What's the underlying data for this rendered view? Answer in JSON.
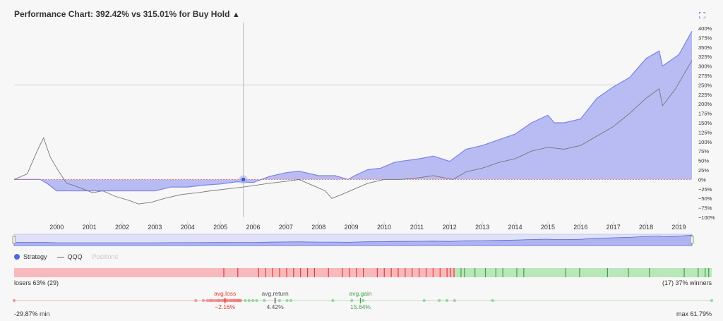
{
  "header": {
    "title": "Performance Chart: 392.42% vs 315.01% for Buy Hold",
    "warning_icon": "warning-triangle-icon",
    "expand_icon": "expand-icon"
  },
  "colors": {
    "strategy": "#7b83ea",
    "strategy_fill": "#b8bcf3",
    "benchmark": "#777777",
    "losers": "#f8b9bd",
    "winners": "#b9e7bb",
    "loss_tick": "#e53935",
    "win_tick": "#43a047"
  },
  "chart_data": {
    "type": "area",
    "x_tick_labels": [
      "2000",
      "2001",
      "2002",
      "2003",
      "2004",
      "2005",
      "2006",
      "2007",
      "2008",
      "2009",
      "2010",
      "2011",
      "2012",
      "2013",
      "2014",
      "2015",
      "2016",
      "2017",
      "2018",
      "2019"
    ],
    "y_tick_labels": [
      "400%",
      "375%",
      "350%",
      "325%",
      "300%",
      "275%",
      "250%",
      "225%",
      "200%",
      "175%",
      "150%",
      "125%",
      "100%",
      "75%",
      "50%",
      "25%",
      "0%",
      "−25%",
      "−50%",
      "−75%",
      "−100%"
    ],
    "ylim": [
      -100,
      400
    ],
    "xlim": [
      1999.2,
      2019.9
    ],
    "series": [
      {
        "name": "Strategy",
        "x": [
          1999.2,
          2000.0,
          2000.2,
          2000.5,
          2001.0,
          2001.5,
          2002.0,
          2002.5,
          2003.0,
          2003.5,
          2004.0,
          2004.5,
          2005.0,
          2005.5,
          2006.0,
          2006.5,
          2007.0,
          2007.5,
          2007.9,
          2008.5,
          2009.0,
          2009.4,
          2009.6,
          2010.0,
          2010.4,
          2010.8,
          2011.0,
          2011.6,
          2012.0,
          2012.5,
          2013.0,
          2013.5,
          2014.0,
          2014.5,
          2015.0,
          2015.5,
          2015.7,
          2016.0,
          2016.5,
          2017.0,
          2017.5,
          2018.0,
          2018.5,
          2018.9,
          2019.0,
          2019.5,
          2019.9
        ],
        "values": [
          0,
          0,
          -10,
          -30,
          -30,
          -30,
          -30,
          -30,
          -30,
          -30,
          -20,
          -20,
          -15,
          -12,
          -6,
          -8,
          8,
          18,
          22,
          10,
          10,
          0,
          10,
          26,
          30,
          45,
          48,
          55,
          62,
          48,
          80,
          90,
          105,
          120,
          150,
          170,
          150,
          150,
          160,
          215,
          245,
          270,
          320,
          340,
          300,
          330,
          392
        ]
      },
      {
        "name": "QQQ",
        "x": [
          1999.2,
          1999.6,
          1999.9,
          2000.1,
          2000.3,
          2000.5,
          2000.8,
          2001.0,
          2001.3,
          2001.6,
          2001.9,
          2002.3,
          2002.7,
          2003.0,
          2003.4,
          2003.8,
          2004.3,
          2004.8,
          2005.2,
          2005.7,
          2006.2,
          2006.6,
          2007.0,
          2007.5,
          2007.9,
          2008.3,
          2008.7,
          2008.9,
          2009.2,
          2009.6,
          2010.0,
          2010.5,
          2011.0,
          2011.6,
          2012.0,
          2012.6,
          2013.0,
          2013.5,
          2014.0,
          2014.5,
          2015.0,
          2015.5,
          2016.0,
          2016.5,
          2017.0,
          2017.5,
          2018.0,
          2018.5,
          2018.9,
          2019.0,
          2019.4,
          2019.9
        ],
        "values": [
          0,
          15,
          75,
          110,
          60,
          30,
          -10,
          -15,
          -25,
          -35,
          -30,
          -45,
          -55,
          -65,
          -60,
          -50,
          -40,
          -35,
          -30,
          -25,
          -20,
          -15,
          -10,
          -5,
          0,
          -15,
          -30,
          -50,
          -40,
          -25,
          -10,
          0,
          0,
          5,
          10,
          0,
          20,
          30,
          45,
          55,
          75,
          85,
          80,
          90,
          115,
          140,
          175,
          215,
          240,
          195,
          240,
          315
        ]
      }
    ],
    "hover_point": {
      "year": 2006.2,
      "value": 0
    },
    "grid": true
  },
  "navigator": {},
  "legend": [
    {
      "label": "Strategy",
      "icon": "strategy-dot-icon",
      "enabled": true
    },
    {
      "label": "QQQ",
      "icon": "qqq-line-icon",
      "enabled": true
    },
    {
      "label": "Positions",
      "icon": "",
      "enabled": false
    }
  ],
  "trades": {
    "losers_label": "losers 63% (29)",
    "winners_label": "(17) 37% winners",
    "loser_fraction": 0.63,
    "loss_ticks": [
      0.3,
      0.32,
      0.35,
      0.36,
      0.37,
      0.38,
      0.39,
      0.4,
      0.41,
      0.42,
      0.43,
      0.45,
      0.47,
      0.48,
      0.49,
      0.5,
      0.52,
      0.53,
      0.54,
      0.55,
      0.56,
      0.57,
      0.58,
      0.59,
      0.6,
      0.61,
      0.62,
      0.625,
      0.63
    ],
    "win_ticks": [
      0.64,
      0.645,
      0.66,
      0.69,
      0.72,
      0.73,
      0.79,
      0.81,
      0.88,
      0.96,
      0.98,
      0.99,
      0.995,
      0.7,
      0.675,
      0.85,
      0.91
    ]
  },
  "distribution": {
    "min_label": "-29.87% min",
    "max_label": "max 61.79%",
    "min": -29.87,
    "max": 61.79,
    "avg_loss": {
      "label": "avg.loss",
      "value": -2.16,
      "value_label": "−2.16%"
    },
    "avg_return": {
      "label": "avg.return",
      "value": 4.42,
      "value_label": "4.42%"
    },
    "avg_gain": {
      "label": "avg.gain",
      "value": 15.64,
      "value_label": "15.64%"
    },
    "loss_points": [
      -29.87,
      -6,
      -5,
      -4.5,
      -4,
      -3.5,
      -3,
      -2.6,
      -2.2,
      -1.8,
      -1.5,
      -1.2,
      -1,
      -0.8,
      -0.6,
      -0.4,
      -0.2,
      -0.1,
      -3.8,
      -2.9,
      -2.4,
      -1.9,
      -1.4,
      -0.9,
      -0.5,
      -0.3,
      -4.2,
      -3.2,
      -2.0
    ],
    "gain_points": [
      0.5,
      1.0,
      1.5,
      2.0,
      3.0,
      5.0,
      6.0,
      6.5,
      12.0,
      14.5,
      16.0,
      24.0,
      26.0,
      27.0,
      28.0,
      33.0,
      61.79
    ]
  }
}
